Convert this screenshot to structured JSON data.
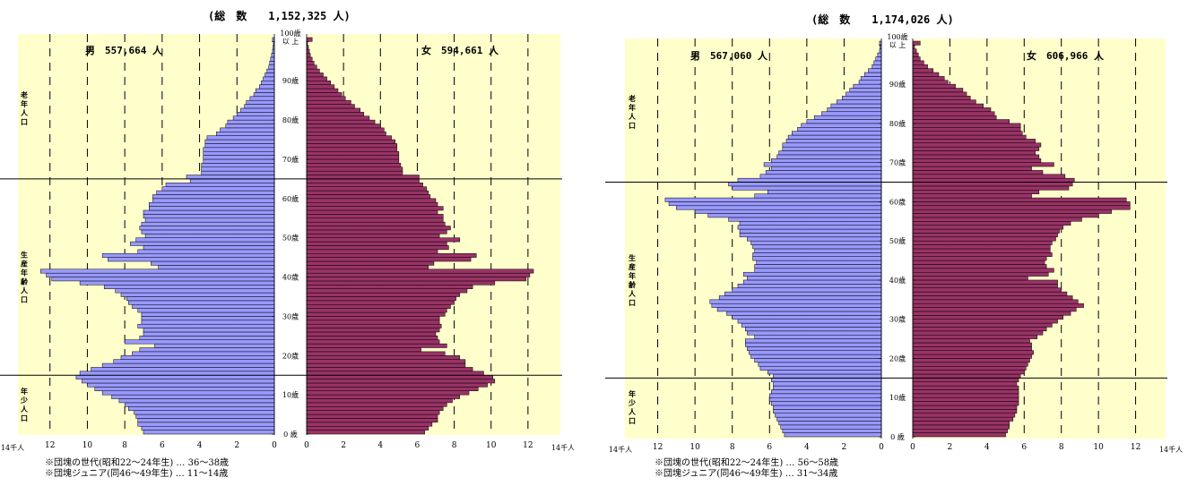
{
  "chart_data": [
    {
      "type": "bar",
      "subtype": "population-pyramid",
      "total_label": "(総　数　　1,152,325 人)",
      "male_label": "男　557,664 人",
      "female_label": "女　594,661 人",
      "unit_left": "14千人",
      "unit_right": "14千人",
      "x_ticks_male": [
        "12",
        "10",
        "8",
        "6",
        "4",
        "2",
        "0"
      ],
      "x_ticks_female": [
        "0",
        "2",
        "4",
        "6",
        "8",
        "10",
        "12"
      ],
      "xlim": [
        0,
        14
      ],
      "age_ticks": [
        "0 歳",
        "10歳",
        "20歳",
        "30歳",
        "40歳",
        "50歳",
        "60歳",
        "70歳",
        "80歳",
        "90歳",
        "100歳",
        "以 上"
      ],
      "groups": [
        "年少人口",
        "生産年齢人口",
        "老年人口"
      ],
      "group_boundaries": [
        15,
        65
      ],
      "notes": [
        "※団塊の世代(昭和22～24年生) … 36～38歳",
        "※団塊ジュニア(同46～49年生) … 11～14歳"
      ],
      "ages_from": 0,
      "male": [
        7.0,
        7.1,
        7.3,
        7.3,
        7.4,
        7.5,
        7.8,
        8.0,
        8.3,
        8.7,
        9.2,
        9.6,
        10.0,
        10.3,
        10.6,
        10.4,
        9.8,
        9.2,
        8.6,
        8.2,
        7.6,
        7.2,
        6.4,
        8.0,
        7.2,
        7.0,
        7.0,
        7.3,
        7.1,
        7.1,
        7.1,
        7.3,
        7.6,
        7.8,
        7.9,
        8.2,
        8.5,
        9.1,
        10.4,
        11.9,
        12.2,
        12.5,
        6.2,
        6.6,
        8.9,
        9.2,
        7.3,
        7.0,
        7.7,
        7.4,
        6.9,
        7.1,
        7.2,
        7.1,
        6.9,
        7.0,
        7.0,
        6.7,
        6.7,
        6.5,
        6.5,
        6.3,
        6.0,
        5.8,
        4.5,
        4.7,
        3.9,
        3.9,
        3.9,
        3.8,
        3.8,
        3.8,
        3.8,
        3.7,
        3.7,
        3.6,
        3.1,
        2.9,
        2.6,
        2.5,
        2.2,
        2.0,
        1.8,
        1.6,
        1.5,
        1.3,
        1.1,
        1.0,
        0.8,
        0.7,
        0.6,
        0.5,
        0.4,
        0.3,
        0.25,
        0.2,
        0.15,
        0.1,
        0.08,
        0.05,
        0.1
      ],
      "female": [
        6.4,
        6.6,
        6.8,
        7.1,
        7.1,
        7.2,
        7.4,
        7.6,
        7.9,
        8.3,
        8.8,
        9.3,
        9.8,
        10.2,
        10.1,
        9.6,
        9.0,
        8.6,
        8.6,
        8.3,
        7.5,
        6.2,
        7.6,
        7.2,
        7.1,
        7.0,
        7.2,
        7.3,
        7.2,
        7.2,
        7.5,
        7.6,
        7.8,
        8.0,
        8.1,
        8.3,
        8.7,
        9.0,
        10.2,
        11.9,
        12.1,
        12.3,
        6.6,
        6.9,
        8.9,
        9.2,
        7.1,
        7.7,
        7.6,
        8.3,
        7.2,
        7.6,
        7.8,
        7.5,
        7.4,
        7.4,
        7.1,
        7.4,
        7.1,
        7.0,
        6.7,
        6.6,
        6.5,
        6.3,
        6.1,
        6.1,
        5.2,
        5.2,
        5.1,
        5.0,
        5.0,
        5.0,
        4.9,
        4.9,
        4.8,
        4.6,
        4.3,
        4.2,
        4.0,
        3.7,
        3.4,
        3.1,
        2.9,
        2.6,
        2.4,
        2.1,
        1.9,
        1.7,
        1.5,
        1.3,
        1.1,
        0.9,
        0.7,
        0.55,
        0.4,
        0.3,
        0.2,
        0.15,
        0.1,
        0.05,
        0.3
      ]
    },
    {
      "type": "bar",
      "subtype": "population-pyramid",
      "total_label": "(総　数　　1,174,026 人)",
      "male_label": "男　567,060 人",
      "female_label": "女　606,966 人",
      "unit_left": "14千人",
      "unit_right": "14千人",
      "x_ticks_male": [
        "12",
        "10",
        "8",
        "6",
        "4",
        "2",
        "0"
      ],
      "x_ticks_female": [
        "0",
        "2",
        "4",
        "6",
        "8",
        "10",
        "12"
      ],
      "xlim": [
        0,
        14
      ],
      "age_ticks": [
        "0 歳",
        "10歳",
        "20歳",
        "30歳",
        "40歳",
        "50歳",
        "60歳",
        "70歳",
        "80歳",
        "90歳",
        "100歳",
        "以 上"
      ],
      "groups": [
        "年少人口",
        "生産年齢人口",
        "老年人口"
      ],
      "group_boundaries": [
        15,
        65
      ],
      "notes": [
        "※団塊の世代(昭和22～24年生) … 56～58歳",
        "※団塊ジュニア(同46～49年生) … 31～34歳"
      ],
      "ages_from": 0,
      "male": [
        5.2,
        5.3,
        5.4,
        5.5,
        5.6,
        5.7,
        5.8,
        5.8,
        5.9,
        6.0,
        6.0,
        5.9,
        5.8,
        5.8,
        5.9,
        5.8,
        6.1,
        6.5,
        6.6,
        6.8,
        7.0,
        7.1,
        7.2,
        7.3,
        7.3,
        6.8,
        7.2,
        7.3,
        7.5,
        7.7,
        8.0,
        8.3,
        8.8,
        9.1,
        9.2,
        8.7,
        8.4,
        8.0,
        7.7,
        7.4,
        7.2,
        7.4,
        6.8,
        6.8,
        6.7,
        6.9,
        6.9,
        6.8,
        6.9,
        7.0,
        7.2,
        7.6,
        7.6,
        7.7,
        7.6,
        8.2,
        9.3,
        10.0,
        11.0,
        11.4,
        11.6,
        6.8,
        6.1,
        8.0,
        8.2,
        7.7,
        6.5,
        6.2,
        5.9,
        6.3,
        5.9,
        5.6,
        5.5,
        5.3,
        5.3,
        5.1,
        5.0,
        4.8,
        4.5,
        4.3,
        4.0,
        3.6,
        3.2,
        2.9,
        2.7,
        2.4,
        2.1,
        1.9,
        1.7,
        1.5,
        1.2,
        1.1,
        0.9,
        0.7,
        0.5,
        0.4,
        0.3,
        0.2,
        0.1,
        0.08,
        0.1
      ],
      "female": [
        5.0,
        5.1,
        5.2,
        5.2,
        5.4,
        5.5,
        5.6,
        5.6,
        5.7,
        5.7,
        5.7,
        5.7,
        5.7,
        5.6,
        5.7,
        5.8,
        6.0,
        6.1,
        6.2,
        6.3,
        6.4,
        6.5,
        6.4,
        6.4,
        6.3,
        6.7,
        7.0,
        7.2,
        7.5,
        7.8,
        8.1,
        8.5,
        8.8,
        9.2,
        8.9,
        8.6,
        8.3,
        8.0,
        7.8,
        7.8,
        6.2,
        7.3,
        7.6,
        7.2,
        7.1,
        7.2,
        7.5,
        7.4,
        7.4,
        7.5,
        7.7,
        7.8,
        7.9,
        8.1,
        8.5,
        9.1,
        10.0,
        10.7,
        11.7,
        11.7,
        11.5,
        6.4,
        6.8,
        8.4,
        8.6,
        8.7,
        8.2,
        7.0,
        6.4,
        7.6,
        6.9,
        6.8,
        6.6,
        6.8,
        6.9,
        6.6,
        6.1,
        5.9,
        5.8,
        5.8,
        5.2,
        4.5,
        4.4,
        4.2,
        3.8,
        3.4,
        3.1,
        2.9,
        2.7,
        2.3,
        1.9,
        1.7,
        1.4,
        1.1,
        0.8,
        0.6,
        0.4,
        0.3,
        0.2,
        0.1,
        0.4
      ]
    }
  ]
}
